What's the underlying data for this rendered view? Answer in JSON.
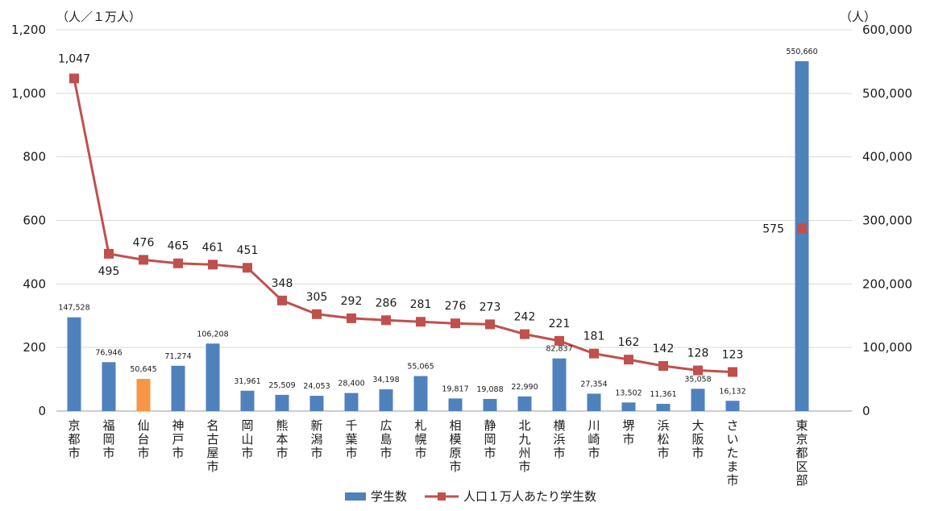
{
  "chart_data": {
    "type": "bar",
    "left_axis_unit": "（人／１万人）",
    "right_axis_unit": "（人）",
    "left_ylim": [
      0,
      1200
    ],
    "left_ticks": [
      "0",
      "200",
      "400",
      "600",
      "800",
      "1,000",
      "1,200"
    ],
    "right_ylim": [
      0,
      600000
    ],
    "right_ticks": [
      "0",
      "100,000",
      "200,000",
      "300,000",
      "400,000",
      "500,000",
      "600,000"
    ],
    "grid": true,
    "legend_placement": "bottom",
    "categories": [
      "京都市",
      "福岡市",
      "仙台市",
      "神戸市",
      "名古屋市",
      "岡山市",
      "熊本市",
      "新潟市",
      "千葉市",
      "広島市",
      "札幌市",
      "相模原市",
      "静岡市",
      "北九州市",
      "横浜市",
      "川崎市",
      "堺市",
      "浜松市",
      "大阪市",
      "さいたま市",
      "東京都区部"
    ],
    "series": [
      {
        "name": "学生数",
        "kind": "bar",
        "axis": "right",
        "color": "#4f81bd",
        "highlight_color": "#f79646",
        "highlight_category": "仙台市",
        "values": [
          147528,
          76946,
          50645,
          71274,
          106208,
          31961,
          25509,
          24053,
          28400,
          34198,
          55065,
          19817,
          19088,
          22990,
          82837,
          27354,
          13502,
          11361,
          35058,
          16132,
          550660
        ],
        "labels": [
          "147,528",
          "76,946",
          "50,645",
          "71,274",
          "106,208",
          "31,961",
          "25,509",
          "24,053",
          "28,400",
          "34,198",
          "55,065",
          "19,817",
          "19,088",
          "22,990",
          "82,837",
          "27,354",
          "13,502",
          "11,361",
          "35,058",
          "16,132",
          "550,660"
        ]
      },
      {
        "name": "人口１万人あたり学生数",
        "kind": "line",
        "axis": "left",
        "color": "#c0504d",
        "connected_until": "さいたま市",
        "values": [
          1047,
          495,
          476,
          465,
          461,
          451,
          348,
          305,
          292,
          286,
          281,
          276,
          273,
          242,
          221,
          181,
          162,
          142,
          128,
          123,
          575
        ],
        "labels": [
          "1,047",
          "495",
          "476",
          "465",
          "461",
          "451",
          "348",
          "305",
          "292",
          "286",
          "281",
          "276",
          "273",
          "242",
          "221",
          "181",
          "162",
          "142",
          "128",
          "123",
          "575"
        ]
      }
    ]
  }
}
